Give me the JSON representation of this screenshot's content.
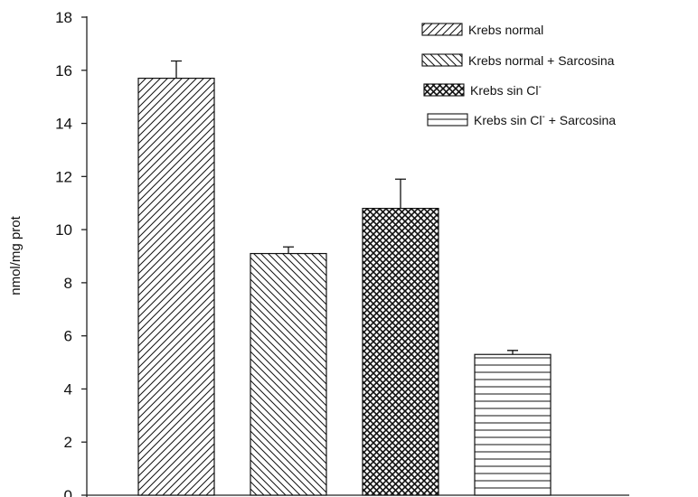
{
  "chart_data": {
    "type": "bar",
    "ylabel": "nmol/mg prot",
    "ylim": [
      0,
      18
    ],
    "yticks": [
      0,
      2,
      4,
      6,
      8,
      10,
      12,
      14,
      16,
      18
    ],
    "grid": false,
    "legend_position": "top-right",
    "series": [
      {
        "legend": [
          "Krebs normal"
        ],
        "value": 15.7,
        "error": 0.65,
        "pattern": "diag-right"
      },
      {
        "legend": [
          "Krebs normal + Sarcosina"
        ],
        "value": 9.1,
        "error": 0.25,
        "pattern": "diag-left"
      },
      {
        "legend": [
          "Krebs sin Cl",
          "-"
        ],
        "value": 10.8,
        "error": 1.1,
        "pattern": "crosshatch"
      },
      {
        "legend": [
          "Krebs sin Cl",
          "-",
          " + Sarcosina"
        ],
        "value": 5.3,
        "error": 0.15,
        "pattern": "horizontal"
      }
    ]
  }
}
